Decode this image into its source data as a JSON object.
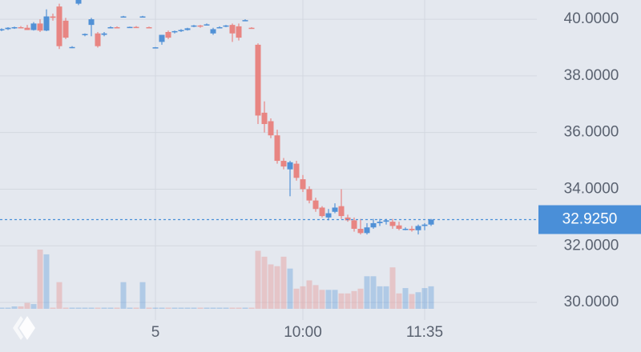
{
  "chart_data": {
    "type": "candlestick",
    "up_color": "#5191d6",
    "down_color": "#e88582",
    "last_price_color": "#4a8fd8",
    "ylim": [
      29.38,
      40.68
    ],
    "yticks": [
      {
        "value": 30,
        "label": "30.0000"
      },
      {
        "value": 32,
        "label": "32.0000"
      },
      {
        "value": 34,
        "label": "34.0000"
      },
      {
        "value": 36,
        "label": "36.0000"
      },
      {
        "value": 38,
        "label": "38.0000"
      },
      {
        "value": 40,
        "label": "40.0000"
      }
    ],
    "grid": true,
    "last_price": {
      "value": 32.925,
      "label": "32.9250"
    },
    "categories": [
      null,
      null,
      null,
      null,
      null,
      null,
      null,
      null,
      null,
      null,
      null,
      null,
      null,
      null,
      null,
      null,
      null,
      null,
      null,
      null,
      null,
      null,
      null,
      null,
      "5",
      null,
      null,
      null,
      null,
      null,
      null,
      null,
      null,
      null,
      null,
      null,
      null,
      null,
      null,
      null,
      null,
      null,
      null,
      null,
      null,
      null,
      null,
      "10:00",
      null,
      null,
      null,
      null,
      null,
      null,
      null,
      null,
      null,
      null,
      null,
      null,
      null,
      null,
      null,
      null,
      null,
      null,
      "11:35",
      null
    ],
    "open": [
      39.62,
      39.65,
      39.7,
      39.72,
      39.7,
      39.62,
      39.85,
      39.6,
      40.1,
      40.45,
      39.95,
      39.0,
      40.55,
      39.45,
      39.8,
      39.5,
      39.45,
      39.7,
      39.72,
      40.1,
      39.72,
      39.73,
      40.1,
      39.72,
      39.0,
      39.2,
      39.55,
      39.55,
      39.6,
      39.62,
      39.75,
      39.78,
      39.8,
      39.5,
      39.7,
      39.75,
      39.8,
      39.75,
      39.95,
      39.7,
      39.1,
      36.7,
      36.4,
      35.9,
      35.0,
      34.7,
      34.9,
      34.35,
      34.0,
      33.6,
      33.35,
      33.0,
      33.2,
      33.4,
      33.0,
      32.9,
      32.6,
      32.45,
      32.65,
      32.8,
      32.85,
      32.85,
      32.72,
      32.6,
      32.6,
      32.55,
      32.7,
      32.75
    ],
    "high": [
      39.68,
      39.72,
      39.74,
      39.76,
      39.8,
      39.9,
      40.0,
      40.35,
      40.2,
      40.55,
      40.05,
      39.05,
      40.7,
      39.5,
      40.05,
      39.55,
      39.55,
      39.75,
      39.75,
      40.12,
      39.74,
      39.76,
      40.12,
      39.74,
      39.02,
      39.45,
      39.6,
      39.6,
      39.65,
      39.7,
      39.8,
      39.8,
      39.85,
      39.7,
      39.75,
      39.8,
      39.85,
      39.85,
      40.0,
      39.72,
      39.15,
      37.1,
      36.5,
      36.1,
      35.1,
      35.0,
      35.0,
      34.5,
      34.1,
      33.7,
      33.4,
      33.3,
      33.5,
      34.0,
      33.1,
      33.0,
      32.95,
      32.8,
      32.95,
      32.95,
      32.95,
      32.95,
      32.85,
      32.65,
      32.7,
      32.75,
      32.8,
      32.95
    ],
    "low": [
      39.58,
      39.62,
      39.66,
      39.68,
      39.62,
      39.6,
      39.55,
      39.58,
      39.95,
      38.95,
      39.3,
      38.98,
      40.5,
      39.4,
      39.4,
      39.0,
      39.4,
      39.68,
      39.7,
      40.08,
      39.7,
      39.7,
      40.08,
      39.7,
      38.98,
      39.1,
      39.3,
      39.5,
      39.55,
      39.6,
      39.72,
      39.7,
      39.78,
      39.45,
      39.68,
      39.72,
      39.2,
      39.25,
      39.93,
      39.68,
      36.3,
      36.0,
      35.8,
      34.9,
      34.7,
      33.75,
      34.3,
      33.9,
      33.5,
      33.2,
      33.0,
      32.9,
      33.15,
      32.95,
      32.85,
      32.5,
      32.4,
      32.4,
      32.6,
      32.7,
      32.75,
      32.6,
      32.55,
      32.55,
      32.5,
      32.4,
      32.55,
      32.7
    ],
    "close": [
      39.65,
      39.7,
      39.72,
      39.7,
      39.62,
      39.85,
      39.6,
      40.1,
      40.05,
      39.05,
      39.35,
      39.02,
      40.68,
      39.48,
      40.0,
      39.05,
      39.5,
      39.72,
      39.71,
      40.1,
      39.73,
      39.72,
      40.1,
      39.7,
      39.01,
      39.45,
      39.35,
      39.58,
      39.62,
      39.68,
      39.78,
      39.75,
      39.82,
      39.65,
      39.72,
      39.78,
      39.5,
      39.35,
      39.97,
      39.69,
      36.6,
      36.3,
      35.9,
      35.0,
      34.8,
      34.95,
      34.4,
      34.0,
      33.6,
      33.3,
      33.05,
      33.15,
      33.35,
      33.05,
      32.9,
      32.6,
      32.45,
      32.65,
      32.8,
      32.85,
      32.9,
      32.7,
      32.6,
      32.6,
      32.55,
      32.7,
      32.75,
      32.925
    ],
    "volume": [
      2,
      2,
      4,
      4,
      10,
      8,
      100,
      92,
      2,
      45,
      2,
      2,
      2,
      2,
      2,
      2,
      2,
      2,
      2,
      45,
      2,
      2,
      45,
      2,
      2,
      2,
      2,
      2,
      2,
      2,
      2,
      2,
      2,
      2,
      2,
      2,
      2,
      2,
      2,
      2,
      98,
      88,
      75,
      72,
      88,
      68,
      34,
      38,
      48,
      40,
      32,
      32,
      32,
      26,
      26,
      30,
      34,
      55,
      55,
      38,
      38,
      70,
      26,
      35,
      25,
      28,
      35,
      38
    ]
  }
}
